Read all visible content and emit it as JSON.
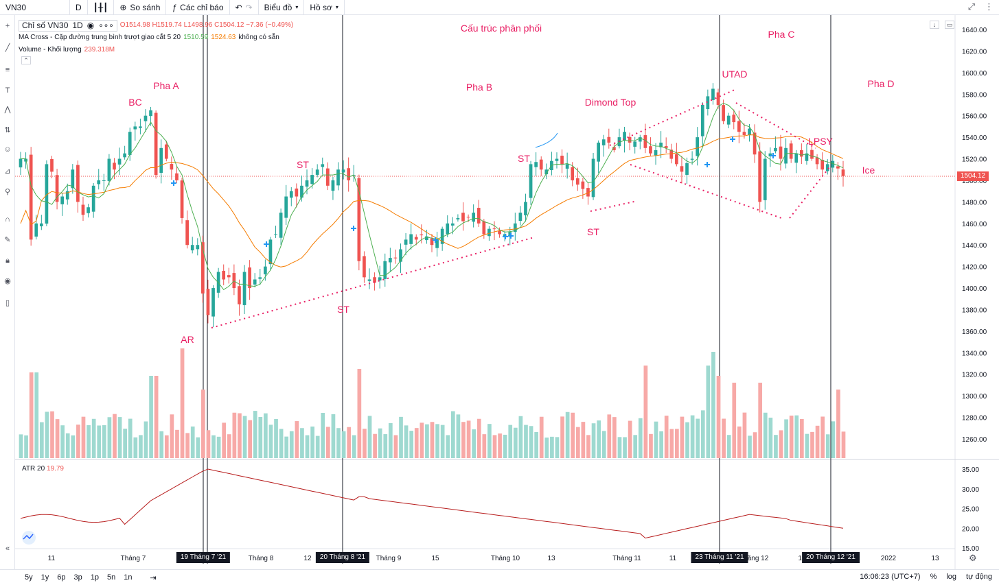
{
  "toolbar": {
    "symbol": "VN30",
    "interval": "D",
    "compare_label": "So sánh",
    "indicators_label": "Các chỉ báo",
    "chart_label": "Biểu đồ",
    "profile_label": "Hồ sơ"
  },
  "legend": {
    "main_title": "Chỉ số VN30",
    "main_interval": "1D",
    "ohlc": "O1514.98 H1519.74 L1498.96 C1504.12 −7.36 (−0.49%)",
    "ma_title": "MA Cross - Cặp đường trung bình trượt giao cắt 5 20",
    "ma_fast_value": "1510.59",
    "ma_slow_value": "1524.63",
    "ma_unavailable": "không có sẵn",
    "volume_title": "Volume - Khối lượng",
    "volume_value": "239.318M",
    "atr_title": "ATR 20",
    "atr_value": "19.79"
  },
  "annotations": [
    {
      "text": "Cấu trúc phân phối",
      "key": "structure"
    },
    {
      "text": "Pha A",
      "key": "pha-a"
    },
    {
      "text": "BC",
      "key": "bc"
    },
    {
      "text": "AR",
      "key": "ar"
    },
    {
      "text": "ST",
      "key": "st-1"
    },
    {
      "text": "ST",
      "key": "st-2"
    },
    {
      "text": "Pha B",
      "key": "pha-b"
    },
    {
      "text": "ST",
      "key": "st-3"
    },
    {
      "text": "Dimond Top",
      "key": "dimond-top"
    },
    {
      "text": "ST",
      "key": "st-4"
    },
    {
      "text": "UTAD",
      "key": "utad"
    },
    {
      "text": "Pha C",
      "key": "pha-c"
    },
    {
      "text": "LPSY",
      "key": "lpsy"
    },
    {
      "text": "Pha D",
      "key": "pha-d"
    },
    {
      "text": "Ice",
      "key": "ice"
    }
  ],
  "price_axis_labels": [
    "1640.00",
    "1620.00",
    "1600.00",
    "1580.00",
    "1560.00",
    "1540.00",
    "1520.00",
    "1500.00",
    "1480.00",
    "1460.00",
    "1440.00",
    "1420.00",
    "1400.00",
    "1380.00",
    "1360.00",
    "1340.00",
    "1320.00",
    "1300.00",
    "1280.00",
    "1260.00"
  ],
  "atr_axis_labels": [
    "35.00",
    "30.00",
    "25.00",
    "20.00",
    "15.00"
  ],
  "current_price_tag": "1504.12",
  "time_axis_labels": [
    "11",
    "Tháng 7",
    "Tháng 8",
    "12",
    "Tháng 9",
    "15",
    "Tháng 10",
    "13",
    "Tháng 11",
    "11",
    "ầng 12",
    "13",
    "2022",
    "13"
  ],
  "date_tags": [
    "19 Tháng 7 '21",
    "20 Tháng 8 '21",
    "23 Tháng 11 '21",
    "20 Tháng 12 '21"
  ],
  "bottom": {
    "ranges": [
      "5y",
      "1y",
      "6p",
      "3p",
      "1p",
      "5n",
      "1n"
    ],
    "time": "16:06:23 (UTC+7)",
    "percent": "%",
    "log": "log",
    "auto": "tự động"
  },
  "colors": {
    "up": "#26a69a",
    "down": "#ef5350",
    "ma_fast": "#4caf50",
    "ma_slow": "#f57c00",
    "atr": "#b71c1c",
    "annotation": "#e91e63"
  },
  "chart_data": {
    "type": "candlestick",
    "price_axis": {
      "min": 1250,
      "max": 1650
    },
    "atr_axis": {
      "min": 14,
      "max": 36
    },
    "closes": [
      1520,
      1520,
      1445,
      1460,
      1460,
      1515,
      1508,
      1480,
      1485,
      1490,
      1510,
      1480,
      1468,
      1475,
      1495,
      1500,
      1500,
      1520,
      1510,
      1520,
      1525,
      1545,
      1550,
      1550,
      1560,
      1565,
      1505,
      1530,
      1520,
      1510,
      1500,
      1465,
      1440,
      1440,
      1440,
      1395,
      1375,
      1400,
      1415,
      1408,
      1410,
      1400,
      1385,
      1415,
      1400,
      1408,
      1410,
      1420,
      1445,
      1450,
      1470,
      1485,
      1490,
      1485,
      1495,
      1500,
      1505,
      1510,
      1515,
      1495,
      1500,
      1510,
      1510,
      1500,
      1505,
      1425,
      1410,
      1408,
      1405,
      1410,
      1425,
      1428,
      1428,
      1436,
      1445,
      1450,
      1445,
      1449,
      1448,
      1440,
      1445,
      1455,
      1460,
      1460,
      1465,
      1462,
      1466,
      1470,
      1460,
      1450,
      1455,
      1455,
      1450,
      1450,
      1452,
      1460,
      1470,
      1480,
      1515,
      1517,
      1510,
      1510,
      1518,
      1520,
      1515,
      1515,
      1500,
      1496,
      1492,
      1485,
      1520,
      1535,
      1538,
      1535,
      1528,
      1540,
      1545,
      1535,
      1536,
      1540,
      1530,
      1525,
      1528,
      1535,
      1530,
      1520,
      1515,
      1508,
      1516,
      1520,
      1540,
      1570,
      1578,
      1585,
      1570,
      1555,
      1560,
      1554,
      1545,
      1542,
      1548,
      1524,
      1480,
      1520,
      1525,
      1530,
      1520,
      1530,
      1520,
      1525,
      1522,
      1525,
      1520,
      1515,
      1510,
      1515,
      1518,
      1511,
      1504
    ]
  }
}
